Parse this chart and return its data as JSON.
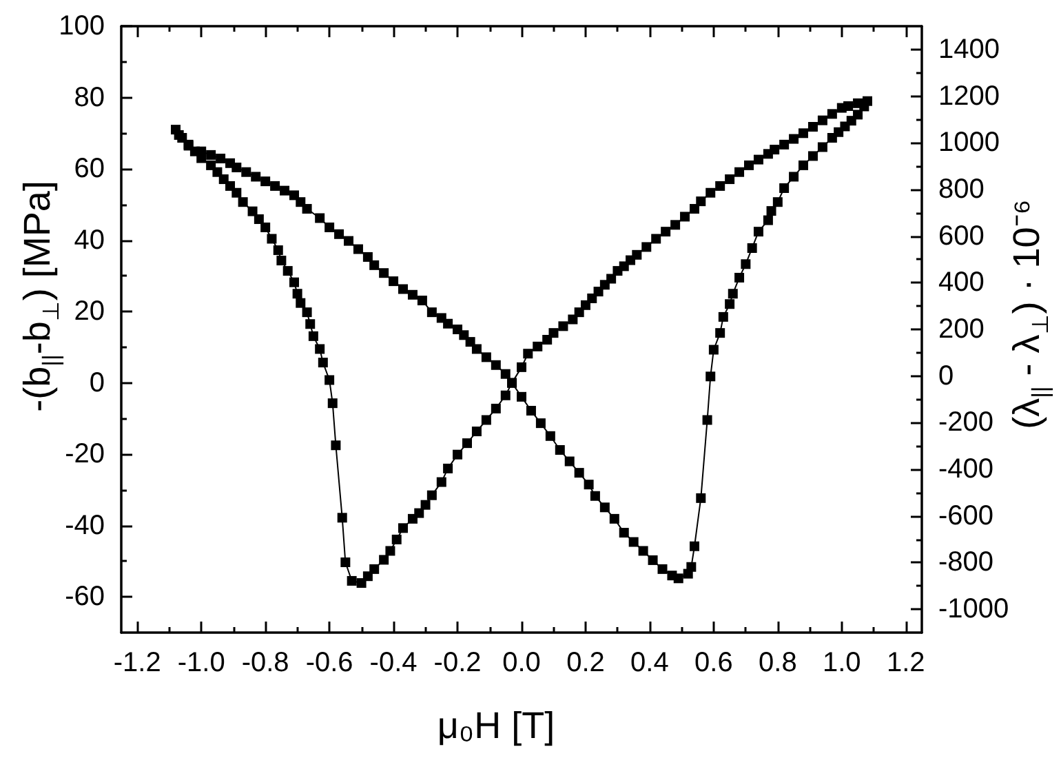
{
  "chart_data": {
    "type": "line",
    "xlabel": "μ₀H [T]",
    "ylabel": "-(b$_{||}$-b$_{⊥}$) [MPa]",
    "y2label": "(λ$_{||}$ - λ$_{⊥}$) · 10⁻⁶",
    "xlim": [
      -1.25,
      1.25
    ],
    "xticks": [
      -1.2,
      {
        "value": -1.1,
        "label": null
      },
      {
        "value": -1,
        "label": "-1.0"
      },
      {
        "value": -0.9,
        "label": null
      },
      -0.8,
      {
        "value": -0.7,
        "label": null
      },
      -0.6,
      {
        "value": -0.5,
        "label": null
      },
      -0.4,
      {
        "value": -0.3,
        "label": null
      },
      -0.2,
      {
        "value": -0.1,
        "label": null
      },
      {
        "value": 0,
        "label": "0.0"
      },
      {
        "value": 0.1,
        "label": null
      },
      0.2,
      {
        "value": 0.3,
        "label": null
      },
      0.4,
      {
        "value": 0.5,
        "label": null
      },
      0.6,
      {
        "value": 0.7,
        "label": null
      },
      0.8,
      {
        "value": 0.9,
        "label": null
      },
      {
        "value": 1,
        "label": "1.0"
      },
      {
        "value": 1.1,
        "label": null
      },
      1.2
    ],
    "ylim": [
      -70,
      100
    ],
    "yticks": [
      -60,
      {
        "value": -50,
        "label": null
      },
      -40,
      {
        "value": -30,
        "label": null
      },
      -20,
      {
        "value": -10,
        "label": null
      },
      0,
      {
        "value": 10,
        "label": null
      },
      20,
      {
        "value": 30,
        "label": null
      },
      40,
      {
        "value": 50,
        "label": null
      },
      60,
      {
        "value": 70,
        "label": null
      },
      80,
      {
        "value": 90,
        "label": null
      },
      100
    ],
    "y2lim": [
      -1100,
      1500
    ],
    "y2ticks": [
      -1000,
      {
        "value": -900,
        "label": null
      },
      -800,
      {
        "value": -700,
        "label": null
      },
      -600,
      {
        "value": -500,
        "label": null
      },
      -400,
      {
        "value": -300,
        "label": null
      },
      -200,
      {
        "value": -100,
        "label": null
      },
      0,
      {
        "value": 100,
        "label": null
      },
      200,
      {
        "value": 300,
        "label": null
      },
      400,
      {
        "value": 500,
        "label": null
      },
      600,
      {
        "value": 700,
        "label": null
      },
      800,
      {
        "value": 900,
        "label": null
      },
      1000,
      {
        "value": 1100,
        "label": null
      },
      1200,
      {
        "value": 1300,
        "label": null
      },
      1400
    ],
    "grid": false,
    "marker": "square",
    "line_style": "solid",
    "series": [
      {
        "color": "#000000",
        "x": [
          1.08,
          1.05,
          1.02,
          1.0,
          0.97,
          0.94,
          0.91,
          0.88,
          0.85,
          0.82,
          0.79,
          0.77,
          0.74,
          0.71,
          0.68,
          0.65,
          0.62,
          0.59,
          0.56,
          0.54,
          0.51,
          0.48,
          0.45,
          0.42,
          0.39,
          0.36,
          0.34,
          0.32,
          0.3,
          0.28,
          0.26,
          0.24,
          0.22,
          0.2,
          0.18,
          0.16,
          0.13,
          0.1,
          0.08,
          0.05,
          0.02,
          0.0,
          -0.03,
          -0.05,
          -0.08,
          -0.11,
          -0.14,
          -0.17,
          -0.2,
          -0.23,
          -0.25,
          -0.28,
          -0.3,
          -0.32,
          -0.34,
          -0.37,
          -0.39,
          -0.41,
          -0.43,
          -0.46,
          -0.48,
          -0.5,
          -0.53,
          -0.55,
          -0.56,
          -0.58,
          -0.59,
          -0.6,
          -0.62,
          -0.63,
          -0.65,
          -0.66,
          -0.67,
          -0.69,
          -0.7,
          -0.71,
          -0.73,
          -0.75,
          -0.76,
          -0.78,
          -0.8,
          -0.82,
          -0.84,
          -0.87,
          -0.89,
          -0.91,
          -0.93,
          -0.95,
          -0.97,
          -1.0,
          -1.02,
          -1.04,
          -1.06,
          -1.08,
          -1.07,
          -1.04,
          -1.0,
          -0.97,
          -0.94,
          -0.91,
          -0.89,
          -0.86,
          -0.83,
          -0.8,
          -0.77,
          -0.74,
          -0.71,
          -0.69,
          -0.67,
          -0.63,
          -0.6,
          -0.57,
          -0.54,
          -0.51,
          -0.48,
          -0.46,
          -0.43,
          -0.4,
          -0.37,
          -0.34,
          -0.31,
          -0.28,
          -0.25,
          -0.23,
          -0.2,
          -0.18,
          -0.16,
          -0.14,
          -0.11,
          -0.08,
          -0.05,
          -0.03,
          0.0,
          0.03,
          0.06,
          0.09,
          0.12,
          0.15,
          0.18,
          0.21,
          0.23,
          0.26,
          0.29,
          0.32,
          0.35,
          0.38,
          0.41,
          0.44,
          0.47,
          0.49,
          0.52,
          0.53,
          0.54,
          0.56,
          0.58,
          0.59,
          0.6,
          0.62,
          0.63,
          0.65,
          0.66,
          0.68,
          0.7,
          0.72,
          0.74,
          0.77,
          0.78,
          0.8,
          0.82,
          0.85,
          0.88,
          0.91,
          0.94,
          0.97,
          0.99,
          1.01,
          1.03,
          1.05,
          1.07
        ],
        "values": [
          79.0,
          78.4,
          77.6,
          77.1,
          75.4,
          73.6,
          71.8,
          70.0,
          68.4,
          66.8,
          65.4,
          64.2,
          62.6,
          61.0,
          59.1,
          57.1,
          55.2,
          53.3,
          50.9,
          48.8,
          46.6,
          44.3,
          42.4,
          40.4,
          38.1,
          35.9,
          34.4,
          32.7,
          31.4,
          29.2,
          27.5,
          25.6,
          23.7,
          21.8,
          19.8,
          17.8,
          15.9,
          14.0,
          12.1,
          10.2,
          8.2,
          4.4,
          0.0,
          -3.5,
          -7.2,
          -10.4,
          -13.6,
          -16.9,
          -20.1,
          -24.0,
          -27.8,
          -31.5,
          -34.2,
          -36.5,
          -38.1,
          -40.7,
          -43.9,
          -47.1,
          -49.6,
          -52.2,
          -54.2,
          -56.1,
          -55.5,
          -50.3,
          -37.8,
          -17.5,
          -5.7,
          0.8,
          5.7,
          9.5,
          13.1,
          16.5,
          19.8,
          22.4,
          25.0,
          28.2,
          31.4,
          34.3,
          37.2,
          40.4,
          43.6,
          45.9,
          48.1,
          50.7,
          53.3,
          55.2,
          57.1,
          59.1,
          61.0,
          63.0,
          64.9,
          66.8,
          68.7,
          71.0,
          69.5,
          66.5,
          64.9,
          63.9,
          62.9,
          61.6,
          60.4,
          59.1,
          57.8,
          56.5,
          55.2,
          53.9,
          52.6,
          50.7,
          48.8,
          46.2,
          43.6,
          41.7,
          39.8,
          37.5,
          35.3,
          33.0,
          30.8,
          28.5,
          26.3,
          24.7,
          23.1,
          19.8,
          18.2,
          16.6,
          15.0,
          13.4,
          11.5,
          9.5,
          7.2,
          5.0,
          2.5,
          0.0,
          -3.9,
          -7.8,
          -11.3,
          -14.9,
          -18.8,
          -22.0,
          -25.2,
          -28.5,
          -31.7,
          -34.9,
          -38.1,
          -42.0,
          -44.6,
          -47.1,
          -49.7,
          -52.2,
          -54.0,
          -54.8,
          -53.5,
          -51.6,
          -45.8,
          -32.3,
          -10.4,
          1.8,
          9.3,
          14.0,
          18.5,
          22.1,
          25.0,
          29.5,
          33.3,
          37.8,
          42.4,
          45.6,
          48.2,
          50.7,
          54.6,
          57.8,
          61.0,
          63.6,
          66.1,
          68.7,
          70.3,
          71.9,
          73.5,
          75.2,
          77.5
        ]
      }
    ]
  }
}
